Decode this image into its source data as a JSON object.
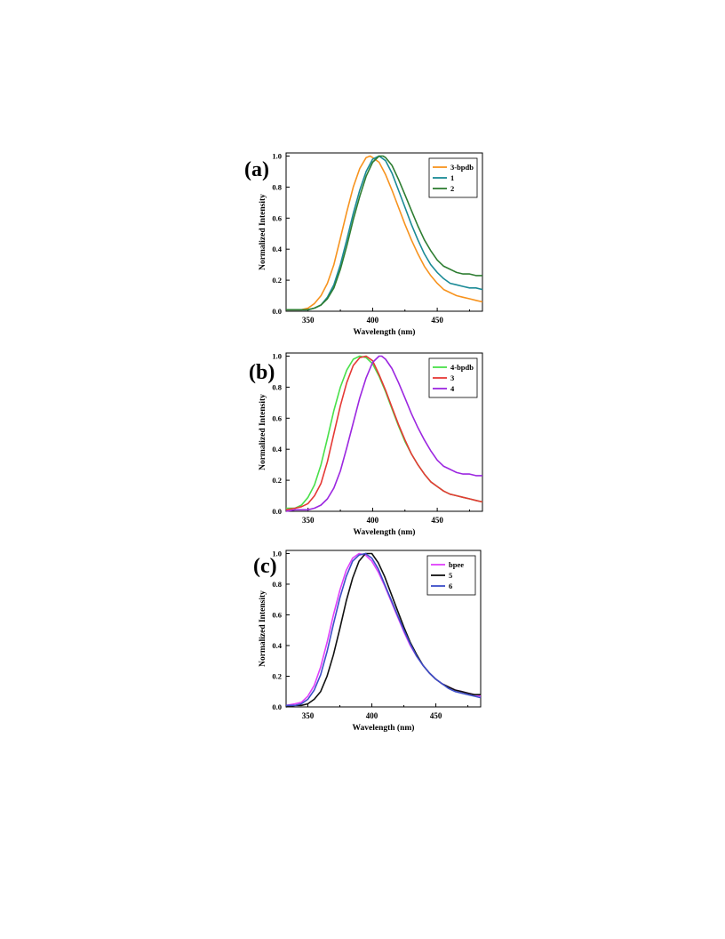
{
  "panels": [
    {
      "label": "(a)"
    },
    {
      "label": "(b)"
    },
    {
      "label": "(c)"
    }
  ],
  "chart_data": [
    {
      "type": "line",
      "xlabel": "Wavelength (nm)",
      "ylabel": "Normalized Intensity",
      "xlim": [
        333,
        485
      ],
      "ylim": [
        0,
        1.02
      ],
      "xticks": [
        350,
        400,
        450
      ],
      "yticks": [
        "0.0",
        "0.2",
        "0.4",
        "0.6",
        "0.8",
        "1.0"
      ],
      "legend_position": "top-right",
      "series": [
        {
          "name": "3-bpdb",
          "color": "#f7931e",
          "x": [
            333,
            340,
            345,
            350,
            355,
            360,
            365,
            370,
            375,
            380,
            385,
            390,
            395,
            398,
            400,
            405,
            410,
            415,
            420,
            425,
            430,
            435,
            440,
            445,
            450,
            455,
            460,
            465,
            470,
            475,
            480,
            485
          ],
          "y": [
            0.01,
            0.01,
            0.01,
            0.02,
            0.05,
            0.1,
            0.18,
            0.3,
            0.47,
            0.64,
            0.8,
            0.92,
            0.99,
            1.0,
            0.99,
            0.96,
            0.88,
            0.78,
            0.67,
            0.56,
            0.46,
            0.37,
            0.29,
            0.23,
            0.18,
            0.14,
            0.12,
            0.1,
            0.09,
            0.08,
            0.07,
            0.06
          ]
        },
        {
          "name": "1",
          "color": "#1a8a96",
          "x": [
            333,
            340,
            345,
            350,
            355,
            360,
            365,
            370,
            375,
            380,
            385,
            390,
            395,
            400,
            405,
            410,
            415,
            420,
            425,
            430,
            435,
            440,
            445,
            450,
            455,
            460,
            465,
            470,
            475,
            480,
            485
          ],
          "y": [
            0.01,
            0.01,
            0.01,
            0.01,
            0.02,
            0.04,
            0.09,
            0.17,
            0.3,
            0.46,
            0.63,
            0.78,
            0.9,
            0.98,
            1.0,
            0.97,
            0.89,
            0.78,
            0.67,
            0.56,
            0.46,
            0.37,
            0.3,
            0.25,
            0.21,
            0.18,
            0.17,
            0.16,
            0.15,
            0.15,
            0.14
          ]
        },
        {
          "name": "2",
          "color": "#2e7d32",
          "x": [
            333,
            340,
            345,
            350,
            355,
            360,
            365,
            370,
            375,
            380,
            385,
            390,
            395,
            400,
            405,
            408,
            410,
            415,
            420,
            425,
            430,
            435,
            440,
            445,
            450,
            455,
            460,
            465,
            470,
            475,
            480,
            485
          ],
          "y": [
            0.01,
            0.01,
            0.01,
            0.01,
            0.02,
            0.04,
            0.08,
            0.15,
            0.27,
            0.42,
            0.59,
            0.74,
            0.87,
            0.96,
            1.0,
            1.0,
            0.99,
            0.94,
            0.85,
            0.75,
            0.65,
            0.55,
            0.46,
            0.39,
            0.33,
            0.29,
            0.27,
            0.25,
            0.24,
            0.24,
            0.23,
            0.23
          ]
        }
      ]
    },
    {
      "type": "line",
      "xlabel": "Wavelength (nm)",
      "ylabel": "Normalized Intensity",
      "xlim": [
        333,
        485
      ],
      "ylim": [
        0,
        1.02
      ],
      "xticks": [
        350,
        400,
        450
      ],
      "yticks": [
        "0.0",
        "0.2",
        "0.4",
        "0.6",
        "0.8",
        "1.0"
      ],
      "legend_position": "top-right",
      "series": [
        {
          "name": "4-bpdb",
          "color": "#49e04a",
          "x": [
            333,
            340,
            345,
            350,
            355,
            360,
            365,
            370,
            375,
            380,
            385,
            390,
            395,
            400,
            405,
            410,
            415,
            420,
            425,
            430,
            435,
            440,
            445,
            450,
            455,
            460,
            465,
            470,
            475,
            480,
            485
          ],
          "y": [
            0.02,
            0.02,
            0.04,
            0.09,
            0.17,
            0.3,
            0.47,
            0.65,
            0.8,
            0.91,
            0.98,
            1.0,
            0.99,
            0.95,
            0.87,
            0.77,
            0.66,
            0.55,
            0.45,
            0.37,
            0.3,
            0.24,
            0.19,
            0.16,
            0.13,
            0.11,
            0.1,
            0.09,
            0.08,
            0.07,
            0.06
          ]
        },
        {
          "name": "3",
          "color": "#e53935",
          "x": [
            333,
            340,
            345,
            350,
            355,
            360,
            365,
            370,
            375,
            380,
            385,
            390,
            395,
            400,
            405,
            410,
            415,
            420,
            425,
            430,
            435,
            440,
            445,
            450,
            455,
            460,
            465,
            470,
            475,
            480,
            485
          ],
          "y": [
            0.01,
            0.02,
            0.03,
            0.05,
            0.1,
            0.18,
            0.32,
            0.5,
            0.68,
            0.83,
            0.94,
            0.99,
            1.0,
            0.97,
            0.88,
            0.78,
            0.67,
            0.56,
            0.46,
            0.37,
            0.3,
            0.24,
            0.19,
            0.16,
            0.13,
            0.11,
            0.1,
            0.09,
            0.08,
            0.07,
            0.06
          ]
        },
        {
          "name": "4",
          "color": "#9c27e0",
          "x": [
            333,
            340,
            345,
            350,
            355,
            360,
            365,
            370,
            375,
            380,
            385,
            390,
            395,
            400,
            405,
            407,
            410,
            415,
            420,
            425,
            430,
            435,
            440,
            445,
            450,
            455,
            460,
            465,
            470,
            475,
            480,
            485
          ],
          "y": [
            0.0,
            0.01,
            0.01,
            0.01,
            0.02,
            0.04,
            0.08,
            0.15,
            0.26,
            0.41,
            0.57,
            0.73,
            0.86,
            0.96,
            1.0,
            1.0,
            0.98,
            0.92,
            0.83,
            0.73,
            0.63,
            0.54,
            0.46,
            0.39,
            0.33,
            0.29,
            0.27,
            0.25,
            0.24,
            0.24,
            0.23,
            0.23
          ]
        }
      ]
    },
    {
      "type": "line",
      "xlabel": "Wavelength (nm)",
      "ylabel": "Normalized Intensity",
      "xlim": [
        333,
        485
      ],
      "ylim": [
        0,
        1.02
      ],
      "xticks": [
        350,
        400,
        450
      ],
      "yticks": [
        "0.0",
        "0.2",
        "0.4",
        "0.6",
        "0.8",
        "1.0"
      ],
      "legend_position": "top-right",
      "series": [
        {
          "name": "bpee",
          "color": "#e040fb",
          "x": [
            333,
            340,
            345,
            350,
            355,
            360,
            365,
            370,
            375,
            380,
            385,
            390,
            395,
            400,
            405,
            410,
            415,
            420,
            425,
            430,
            435,
            440,
            445,
            450,
            455,
            460,
            465,
            470,
            475,
            480,
            485
          ],
          "y": [
            0.01,
            0.02,
            0.03,
            0.07,
            0.14,
            0.26,
            0.42,
            0.6,
            0.76,
            0.89,
            0.97,
            1.0,
            0.99,
            0.95,
            0.88,
            0.79,
            0.69,
            0.59,
            0.49,
            0.4,
            0.33,
            0.27,
            0.22,
            0.18,
            0.15,
            0.13,
            0.11,
            0.1,
            0.09,
            0.08,
            0.07
          ]
        },
        {
          "name": "5",
          "color": "#111111",
          "x": [
            333,
            340,
            345,
            350,
            355,
            360,
            365,
            370,
            375,
            380,
            385,
            390,
            395,
            400,
            405,
            410,
            415,
            420,
            425,
            430,
            435,
            440,
            445,
            450,
            455,
            460,
            465,
            470,
            475,
            480,
            485
          ],
          "y": [
            0.0,
            0.01,
            0.01,
            0.02,
            0.05,
            0.1,
            0.2,
            0.34,
            0.51,
            0.69,
            0.84,
            0.95,
            1.0,
            1.0,
            0.94,
            0.85,
            0.74,
            0.63,
            0.52,
            0.42,
            0.34,
            0.27,
            0.22,
            0.18,
            0.15,
            0.13,
            0.11,
            0.1,
            0.09,
            0.08,
            0.08
          ]
        },
        {
          "name": "6",
          "color": "#3d4fc9",
          "x": [
            333,
            340,
            345,
            350,
            355,
            360,
            365,
            370,
            375,
            380,
            385,
            390,
            395,
            400,
            405,
            410,
            415,
            420,
            425,
            430,
            435,
            440,
            445,
            450,
            455,
            460,
            465,
            470,
            475,
            480,
            485
          ],
          "y": [
            0.01,
            0.01,
            0.02,
            0.05,
            0.11,
            0.21,
            0.36,
            0.54,
            0.71,
            0.85,
            0.95,
            0.99,
            1.0,
            0.97,
            0.9,
            0.8,
            0.7,
            0.6,
            0.5,
            0.41,
            0.33,
            0.27,
            0.22,
            0.18,
            0.15,
            0.12,
            0.1,
            0.09,
            0.08,
            0.07,
            0.06
          ]
        }
      ]
    }
  ]
}
